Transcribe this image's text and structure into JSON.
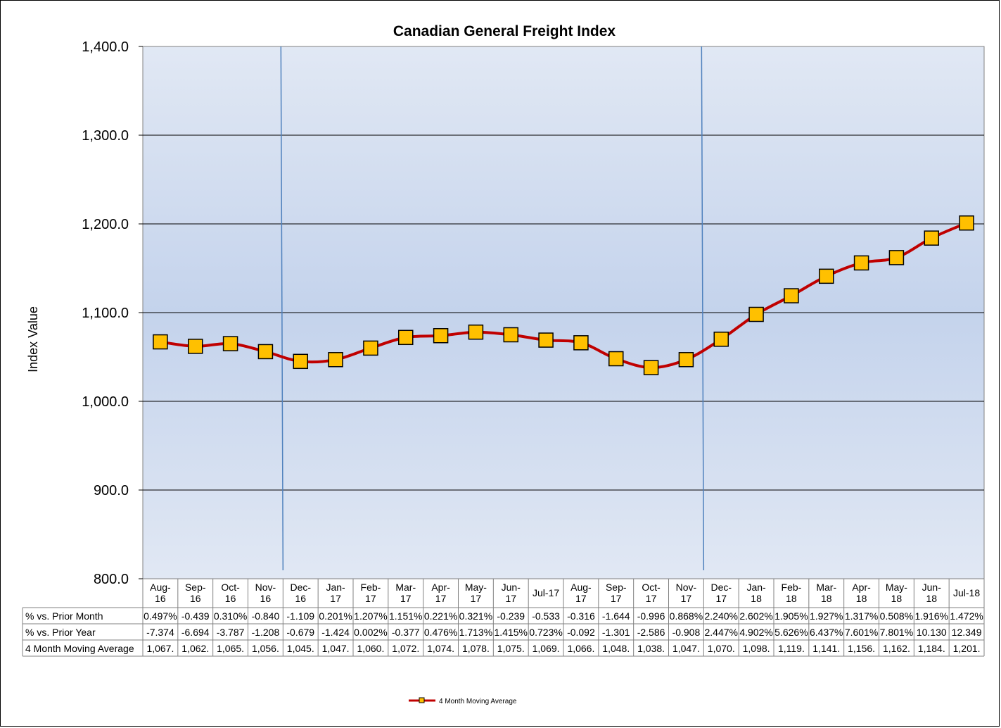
{
  "chart_data": {
    "type": "line",
    "title": "Canadian General Freight Index",
    "ylabel": "Index Value",
    "ylim": [
      800,
      1400
    ],
    "yticks": [
      "1,400.0",
      "1,300.0",
      "1,200.0",
      "1,100.0",
      "1,000.0",
      "900.0",
      "800.0"
    ],
    "grid": true,
    "categories": [
      [
        "Aug-",
        "16"
      ],
      [
        "Sep-",
        "16"
      ],
      [
        "Oct-",
        "16"
      ],
      [
        "Nov-",
        "16"
      ],
      [
        "Dec-",
        "16"
      ],
      [
        "Jan-",
        "17"
      ],
      [
        "Feb-",
        "17"
      ],
      [
        "Mar-",
        "17"
      ],
      [
        "Apr-",
        "17"
      ],
      [
        "May-",
        "17"
      ],
      [
        "Jun-",
        "17"
      ],
      [
        "Jul-17"
      ],
      [
        "Aug-",
        "17"
      ],
      [
        "Sep-",
        "17"
      ],
      [
        "Oct-",
        "17"
      ],
      [
        "Nov-",
        "17"
      ],
      [
        "Dec-",
        "17"
      ],
      [
        "Jan-",
        "18"
      ],
      [
        "Feb-",
        "18"
      ],
      [
        "Mar-",
        "18"
      ],
      [
        "Apr-",
        "18"
      ],
      [
        "May-",
        "18"
      ],
      [
        "Jun-",
        "18"
      ],
      [
        "Jul-18"
      ]
    ],
    "series": [
      {
        "name": "4 Month Moving Average",
        "color": "#C00000",
        "marker_color": "#FFC000",
        "values": [
          1067,
          1062,
          1065,
          1056,
          1045,
          1047,
          1060,
          1072,
          1074,
          1078,
          1075,
          1069,
          1066,
          1048,
          1038,
          1047,
          1070,
          1098,
          1119,
          1141,
          1156,
          1162,
          1184,
          1201
        ]
      }
    ],
    "vertical_markers_after": [
      "Nov-16",
      "Nov-17"
    ],
    "vertical_marker_color": "#4F81BD",
    "legend_position": "bottom",
    "table": [
      {
        "label": "% vs. Prior Month",
        "cells": [
          "0.497%",
          "-0.439",
          "0.310%",
          "-0.840",
          "-1.109",
          "0.201%",
          "1.207%",
          "1.151%",
          "0.221%",
          "0.321%",
          "-0.239",
          "-0.533",
          "-0.316",
          "-1.644",
          "-0.996",
          "0.868%",
          "2.240%",
          "2.602%",
          "1.905%",
          "1.927%",
          "1.317%",
          "0.508%",
          "1.916%",
          "1.472%"
        ]
      },
      {
        "label": "% vs. Prior Year",
        "cells": [
          "-7.374",
          "-6.694",
          "-3.787",
          "-1.208",
          "-0.679",
          "-1.424",
          "0.002%",
          "-0.377",
          "0.476%",
          "1.713%",
          "1.415%",
          "0.723%",
          "-0.092",
          "-1.301",
          "-2.586",
          "-0.908",
          "2.447%",
          "4.902%",
          "5.626%",
          "6.437%",
          "7.601%",
          "7.801%",
          "10.130",
          "12.349"
        ]
      },
      {
        "label": "4 Month Moving Average",
        "cells": [
          "1,067.",
          "1,062.",
          "1,065.",
          "1,056.",
          "1,045.",
          "1,047.",
          "1,060.",
          "1,072.",
          "1,074.",
          "1,078.",
          "1,075.",
          "1,069.",
          "1,066.",
          "1,048.",
          "1,038.",
          "1,047.",
          "1,070.",
          "1,098.",
          "1,119.",
          "1,141.",
          "1,156.",
          "1,162.",
          "1,184.",
          "1,201."
        ]
      }
    ]
  }
}
